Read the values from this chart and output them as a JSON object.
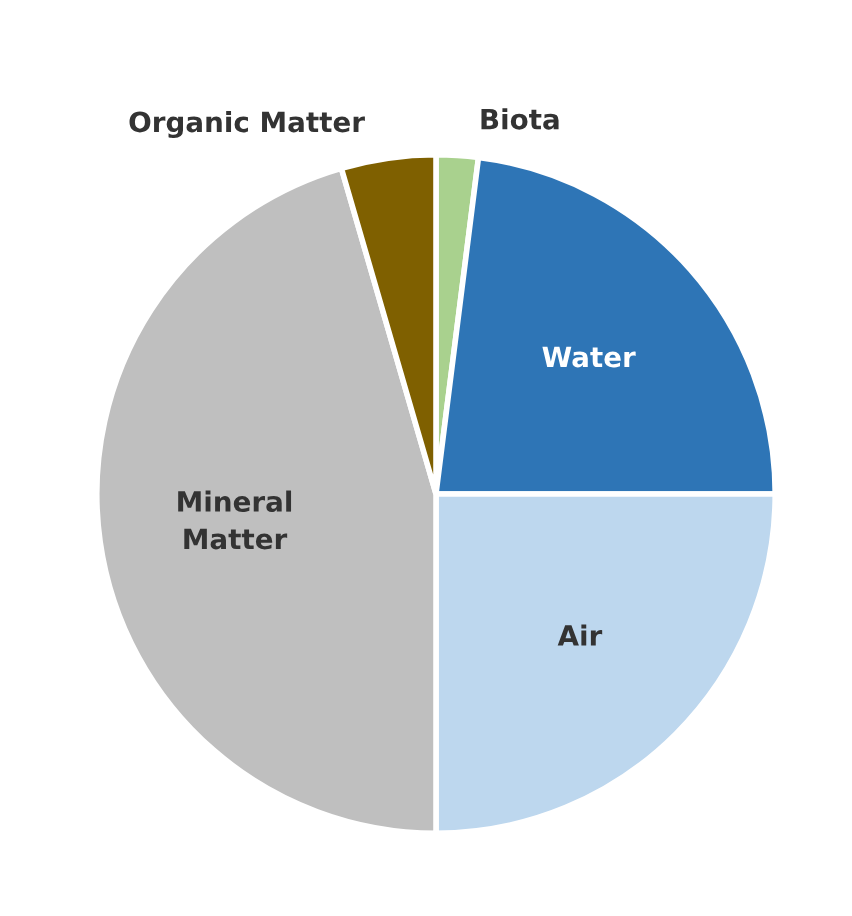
{
  "chart_data": {
    "type": "pie",
    "categories": [
      "Biota",
      "Water",
      "Air",
      "Mineral\nMatter",
      "Organic Matter"
    ],
    "values": [
      2,
      23,
      25,
      45.5,
      4.5
    ],
    "colors": [
      "#a9d18e",
      "#2e75b6",
      "#bdd7ee",
      "#bfbfbf",
      "#7f6000"
    ],
    "legend": false
  }
}
